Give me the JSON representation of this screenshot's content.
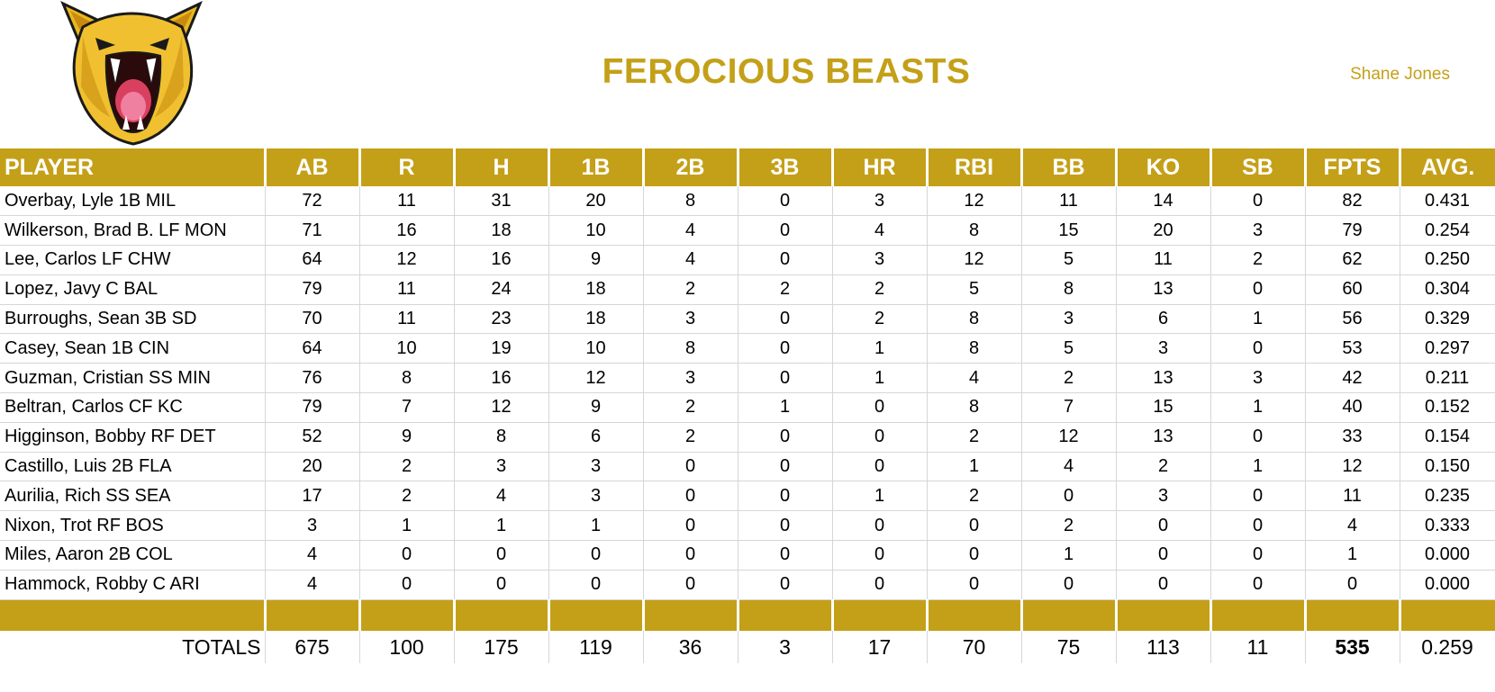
{
  "header": {
    "team_name": "FEROCIOUS BEASTS",
    "owner": "Shane Jones",
    "logo_icon": "cougar-head-logo"
  },
  "colors": {
    "accent": "#c4a018",
    "grid": "#d6d6d6"
  },
  "table": {
    "columns": [
      "PLAYER",
      "AB",
      "R",
      "H",
      "1B",
      "2B",
      "3B",
      "HR",
      "RBI",
      "BB",
      "KO",
      "SB",
      "FPTS",
      "AVG."
    ],
    "rows": [
      [
        "Overbay, Lyle 1B MIL",
        "72",
        "11",
        "31",
        "20",
        "8",
        "0",
        "3",
        "12",
        "11",
        "14",
        "0",
        "82",
        "0.431"
      ],
      [
        "Wilkerson, Brad B. LF MON",
        "71",
        "16",
        "18",
        "10",
        "4",
        "0",
        "4",
        "8",
        "15",
        "20",
        "3",
        "79",
        "0.254"
      ],
      [
        "Lee, Carlos LF CHW",
        "64",
        "12",
        "16",
        "9",
        "4",
        "0",
        "3",
        "12",
        "5",
        "11",
        "2",
        "62",
        "0.250"
      ],
      [
        "Lopez, Javy C BAL",
        "79",
        "11",
        "24",
        "18",
        "2",
        "2",
        "2",
        "5",
        "8",
        "13",
        "0",
        "60",
        "0.304"
      ],
      [
        "Burroughs, Sean 3B SD",
        "70",
        "11",
        "23",
        "18",
        "3",
        "0",
        "2",
        "8",
        "3",
        "6",
        "1",
        "56",
        "0.329"
      ],
      [
        "Casey, Sean 1B CIN",
        "64",
        "10",
        "19",
        "10",
        "8",
        "0",
        "1",
        "8",
        "5",
        "3",
        "0",
        "53",
        "0.297"
      ],
      [
        "Guzman, Cristian SS MIN",
        "76",
        "8",
        "16",
        "12",
        "3",
        "0",
        "1",
        "4",
        "2",
        "13",
        "3",
        "42",
        "0.211"
      ],
      [
        "Beltran, Carlos CF KC",
        "79",
        "7",
        "12",
        "9",
        "2",
        "1",
        "0",
        "8",
        "7",
        "15",
        "1",
        "40",
        "0.152"
      ],
      [
        "Higginson, Bobby RF DET",
        "52",
        "9",
        "8",
        "6",
        "2",
        "0",
        "0",
        "2",
        "12",
        "13",
        "0",
        "33",
        "0.154"
      ],
      [
        "Castillo, Luis 2B FLA",
        "20",
        "2",
        "3",
        "3",
        "0",
        "0",
        "0",
        "1",
        "4",
        "2",
        "1",
        "12",
        "0.150"
      ],
      [
        "Aurilia, Rich SS SEA",
        "17",
        "2",
        "4",
        "3",
        "0",
        "0",
        "1",
        "2",
        "0",
        "3",
        "0",
        "11",
        "0.235"
      ],
      [
        "Nixon, Trot RF BOS",
        "3",
        "1",
        "1",
        "1",
        "0",
        "0",
        "0",
        "0",
        "2",
        "0",
        "0",
        "4",
        "0.333"
      ],
      [
        "Miles, Aaron 2B COL",
        "4",
        "0",
        "0",
        "0",
        "0",
        "0",
        "0",
        "0",
        "1",
        "0",
        "0",
        "1",
        "0.000"
      ],
      [
        "Hammock, Robby C ARI",
        "4",
        "0",
        "0",
        "0",
        "0",
        "0",
        "0",
        "0",
        "0",
        "0",
        "0",
        "0",
        "0.000"
      ]
    ],
    "totals": [
      "TOTALS",
      "675",
      "100",
      "175",
      "119",
      "36",
      "3",
      "17",
      "70",
      "75",
      "113",
      "11",
      "535",
      "0.259"
    ]
  }
}
